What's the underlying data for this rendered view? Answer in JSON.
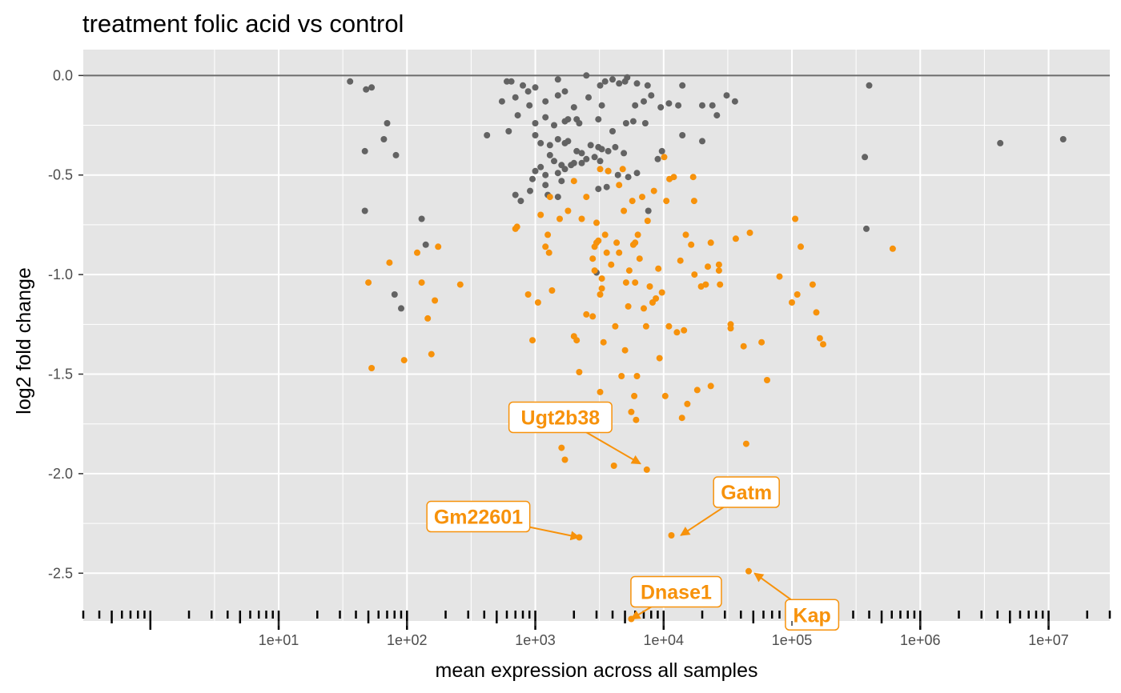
{
  "chart_data": {
    "type": "scatter",
    "title": "treatment folic acid vs control",
    "xlabel": "mean expression across all samples",
    "ylabel": "log2 fold change",
    "x_scale": "log10",
    "xlim": [
      0.3,
      30000000
    ],
    "ylim": [
      -2.74,
      0.13
    ],
    "x_ticks": [
      {
        "value": 10,
        "label": "1e+01"
      },
      {
        "value": 100,
        "label": "1e+02"
      },
      {
        "value": 1000,
        "label": "1e+03"
      },
      {
        "value": 10000,
        "label": "1e+04"
      },
      {
        "value": 100000,
        "label": "1e+05"
      },
      {
        "value": 1000000,
        "label": "1e+06"
      },
      {
        "value": 10000000,
        "label": "1e+07"
      }
    ],
    "y_ticks": [
      {
        "value": 0.0,
        "label": "0.0"
      },
      {
        "value": -0.5,
        "label": "-0.5"
      },
      {
        "value": -1.0,
        "label": "-1.0"
      },
      {
        "value": -1.5,
        "label": "-1.5"
      },
      {
        "value": -2.0,
        "label": "-2.0"
      },
      {
        "value": -2.5,
        "label": "-2.5"
      }
    ],
    "reference_line_y": 0,
    "rug": "x-axis",
    "grid": true,
    "legend": "none",
    "colors": {
      "panel": "#e5e5e5",
      "grid": "#ffffff",
      "not_significant": "#636363",
      "significant": "#f7920b",
      "reference_line": "#6b6b6b"
    },
    "series": [
      {
        "color_key": "not_significant",
        "points": [
          [
            36,
            -0.03
          ],
          [
            48,
            -0.07
          ],
          [
            53,
            -0.06
          ],
          [
            70,
            -0.24
          ],
          [
            66,
            -0.32
          ],
          [
            82,
            -0.4
          ],
          [
            47,
            -0.38
          ],
          [
            47,
            -0.68
          ],
          [
            130,
            -0.72
          ],
          [
            140,
            -0.85
          ],
          [
            80,
            -1.1
          ],
          [
            90,
            -1.17
          ],
          [
            600,
            -0.03
          ],
          [
            650,
            -0.03
          ],
          [
            800,
            -0.05
          ],
          [
            880,
            -0.08
          ],
          [
            1000,
            -0.06
          ],
          [
            1500,
            -0.02
          ],
          [
            2500,
            0.0
          ],
          [
            3500,
            -0.03
          ],
          [
            4000,
            -0.02
          ],
          [
            5000,
            -0.03
          ],
          [
            5200,
            -0.01
          ],
          [
            4500,
            -0.04
          ],
          [
            3200,
            -0.05
          ],
          [
            6200,
            -0.04
          ],
          [
            7500,
            -0.05
          ],
          [
            14000,
            -0.05
          ],
          [
            550,
            -0.13
          ],
          [
            620,
            -0.28
          ],
          [
            700,
            -0.11
          ],
          [
            900,
            -0.15
          ],
          [
            1200,
            -0.13
          ],
          [
            1500,
            -0.1
          ],
          [
            1700,
            -0.08
          ],
          [
            2000,
            -0.16
          ],
          [
            2600,
            -0.11
          ],
          [
            3300,
            -0.15
          ],
          [
            6000,
            -0.15
          ],
          [
            7000,
            -0.13
          ],
          [
            8000,
            -0.1
          ],
          [
            9500,
            -0.16
          ],
          [
            11000,
            -0.14
          ],
          [
            13000,
            -0.15
          ],
          [
            20000,
            -0.15
          ],
          [
            24000,
            -0.15
          ],
          [
            31000,
            -0.1
          ],
          [
            36000,
            -0.13
          ],
          [
            26000,
            -0.2
          ],
          [
            420,
            -0.3
          ],
          [
            730,
            -0.2
          ],
          [
            1000,
            -0.24
          ],
          [
            1200,
            -0.21
          ],
          [
            1400,
            -0.25
          ],
          [
            1700,
            -0.23
          ],
          [
            1800,
            -0.22
          ],
          [
            2100,
            -0.22
          ],
          [
            2200,
            -0.24
          ],
          [
            3100,
            -0.22
          ],
          [
            4000,
            -0.28
          ],
          [
            5100,
            -0.24
          ],
          [
            5800,
            -0.23
          ],
          [
            7200,
            -0.24
          ],
          [
            14000,
            -0.3
          ],
          [
            20000,
            -0.33
          ],
          [
            1000,
            -0.3
          ],
          [
            1100,
            -0.34
          ],
          [
            1300,
            -0.35
          ],
          [
            1500,
            -0.32
          ],
          [
            1700,
            -0.34
          ],
          [
            1800,
            -0.33
          ],
          [
            2100,
            -0.38
          ],
          [
            2300,
            -0.39
          ],
          [
            2700,
            -0.35
          ],
          [
            3100,
            -0.36
          ],
          [
            3300,
            -0.37
          ],
          [
            4200,
            -0.36
          ],
          [
            4900,
            -0.39
          ],
          [
            3700,
            -0.38
          ],
          [
            2900,
            -0.41
          ],
          [
            2500,
            -0.42
          ],
          [
            2000,
            -0.44
          ],
          [
            1600,
            -0.45
          ],
          [
            1400,
            -0.43
          ],
          [
            1300,
            -0.4
          ],
          [
            1100,
            -0.46
          ],
          [
            1000,
            -0.48
          ],
          [
            950,
            -0.52
          ],
          [
            1200,
            -0.5
          ],
          [
            1500,
            -0.49
          ],
          [
            1700,
            -0.47
          ],
          [
            1900,
            -0.45
          ],
          [
            2300,
            -0.44
          ],
          [
            3200,
            -0.43
          ],
          [
            3700,
            -0.48
          ],
          [
            4400,
            -0.5
          ],
          [
            9000,
            -0.42
          ],
          [
            9700,
            -0.38
          ],
          [
            1200,
            -0.55
          ],
          [
            1600,
            -0.53
          ],
          [
            3100,
            -0.57
          ],
          [
            3600,
            -0.56
          ],
          [
            5300,
            -0.51
          ],
          [
            6200,
            -0.49
          ],
          [
            700,
            -0.6
          ],
          [
            770,
            -0.63
          ],
          [
            910,
            -0.58
          ],
          [
            1250,
            -0.6
          ],
          [
            1500,
            -0.61
          ],
          [
            7600,
            -0.68
          ],
          [
            3000,
            -0.99
          ],
          [
            370000,
            -0.41
          ],
          [
            380000,
            -0.77
          ],
          [
            400000,
            -0.05
          ],
          [
            4200000,
            -0.34
          ],
          [
            13000000,
            -0.32
          ]
        ]
      },
      {
        "color_key": "significant",
        "points": [
          [
            50,
            -1.04
          ],
          [
            53,
            -1.47
          ],
          [
            73,
            -0.94
          ],
          [
            95,
            -1.43
          ],
          [
            120,
            -0.89
          ],
          [
            130,
            -1.04
          ],
          [
            145,
            -1.22
          ],
          [
            155,
            -1.4
          ],
          [
            165,
            -1.13
          ],
          [
            175,
            -0.86
          ],
          [
            260,
            -1.05
          ],
          [
            700,
            -0.77
          ],
          [
            720,
            -0.76
          ],
          [
            880,
            -1.1
          ],
          [
            950,
            -1.33
          ],
          [
            1050,
            -1.14
          ],
          [
            1100,
            -0.7
          ],
          [
            1200,
            -0.86
          ],
          [
            1250,
            -0.8
          ],
          [
            1280,
            -0.89
          ],
          [
            1300,
            -0.61
          ],
          [
            1350,
            -1.08
          ],
          [
            1550,
            -0.72
          ],
          [
            1600,
            -1.87
          ],
          [
            1700,
            -1.93
          ],
          [
            1800,
            -0.68
          ],
          [
            2000,
            -1.31
          ],
          [
            2100,
            -1.33
          ],
          [
            2200,
            -1.49
          ],
          [
            2000,
            -0.53
          ],
          [
            2300,
            -0.72
          ],
          [
            2500,
            -1.2
          ],
          [
            2500,
            -0.61
          ],
          [
            2800,
            -1.21
          ],
          [
            2900,
            -0.98
          ],
          [
            2800,
            -0.92
          ],
          [
            2900,
            -0.86
          ],
          [
            3000,
            -0.84
          ],
          [
            3000,
            -0.74
          ],
          [
            3100,
            -0.83
          ],
          [
            3200,
            -1.59
          ],
          [
            3200,
            -1.1
          ],
          [
            3300,
            -1.07
          ],
          [
            3300,
            -1.02
          ],
          [
            3400,
            -1.34
          ],
          [
            3500,
            -0.8
          ],
          [
            3600,
            -0.89
          ],
          [
            3700,
            -0.48
          ],
          [
            3200,
            -0.47
          ],
          [
            3900,
            -0.95
          ],
          [
            4100,
            -1.96
          ],
          [
            4200,
            -1.26
          ],
          [
            4300,
            -0.84
          ],
          [
            4500,
            -0.89
          ],
          [
            4500,
            -0.55
          ],
          [
            4700,
            -1.51
          ],
          [
            4800,
            -0.47
          ],
          [
            4900,
            -0.68
          ],
          [
            5000,
            -1.38
          ],
          [
            5100,
            -1.04
          ],
          [
            5300,
            -1.16
          ],
          [
            5400,
            -0.98
          ],
          [
            5600,
            -1.69
          ],
          [
            5700,
            -0.63
          ],
          [
            5800,
            -0.85
          ],
          [
            5900,
            -1.61
          ],
          [
            6000,
            -1.04
          ],
          [
            6100,
            -1.73
          ],
          [
            6000,
            -0.84
          ],
          [
            6200,
            -1.51
          ],
          [
            6300,
            -0.8
          ],
          [
            6500,
            -0.92
          ],
          [
            6800,
            -0.61
          ],
          [
            7000,
            -1.17
          ],
          [
            7300,
            -1.26
          ],
          [
            7500,
            -0.73
          ],
          [
            7800,
            -1.06
          ],
          [
            8200,
            -1.14
          ],
          [
            8400,
            -0.58
          ],
          [
            8700,
            -1.12
          ],
          [
            9100,
            -0.97
          ],
          [
            9300,
            -1.42
          ],
          [
            9700,
            -1.09
          ],
          [
            10300,
            -1.61
          ],
          [
            10500,
            -0.63
          ],
          [
            11000,
            -1.26
          ],
          [
            11100,
            -0.52
          ],
          [
            12000,
            -0.51
          ],
          [
            12700,
            -1.29
          ],
          [
            13500,
            -0.93
          ],
          [
            13900,
            -1.72
          ],
          [
            14400,
            -1.28
          ],
          [
            14900,
            -0.8
          ],
          [
            15300,
            -1.65
          ],
          [
            16400,
            -0.85
          ],
          [
            17000,
            -0.51
          ],
          [
            17300,
            -0.63
          ],
          [
            17400,
            -1.0
          ],
          [
            18300,
            -1.58
          ],
          [
            19600,
            -1.06
          ],
          [
            21300,
            -1.05
          ],
          [
            22100,
            -0.96
          ],
          [
            23300,
            -0.84
          ],
          [
            23300,
            -1.56
          ],
          [
            27000,
            -0.95
          ],
          [
            27000,
            -0.98
          ],
          [
            27500,
            -1.05
          ],
          [
            33300,
            -1.25
          ],
          [
            33300,
            -1.27
          ],
          [
            36500,
            -0.82
          ],
          [
            42000,
            -1.36
          ],
          [
            44000,
            -1.85
          ],
          [
            47000,
            -0.79
          ],
          [
            58000,
            -1.34
          ],
          [
            64000,
            -1.53
          ],
          [
            80000,
            -1.01
          ],
          [
            100000,
            -1.14
          ],
          [
            106000,
            -0.72
          ],
          [
            110000,
            -1.1
          ],
          [
            117000,
            -0.86
          ],
          [
            145000,
            -1.05
          ],
          [
            155000,
            -1.19
          ],
          [
            165000,
            -1.32
          ],
          [
            175000,
            -1.35
          ],
          [
            610000,
            -0.87
          ],
          [
            10100,
            -0.41
          ],
          [
            2200,
            -2.32
          ],
          [
            7400,
            -1.98
          ],
          [
            5600,
            -2.73
          ],
          [
            11500,
            -2.31
          ],
          [
            46000,
            -2.49
          ]
        ]
      }
    ],
    "annotations": [
      {
        "label": "Ugt2b38",
        "x": 6600,
        "y": -1.95
      },
      {
        "label": "Gm22601",
        "x": 2200,
        "y": -2.32
      },
      {
        "label": "Gatm",
        "x": 13600,
        "y": -2.31
      },
      {
        "label": "Dnase1",
        "x": 5600,
        "y": -2.73
      },
      {
        "label": "Kap",
        "x": 51000,
        "y": -2.5
      }
    ]
  }
}
